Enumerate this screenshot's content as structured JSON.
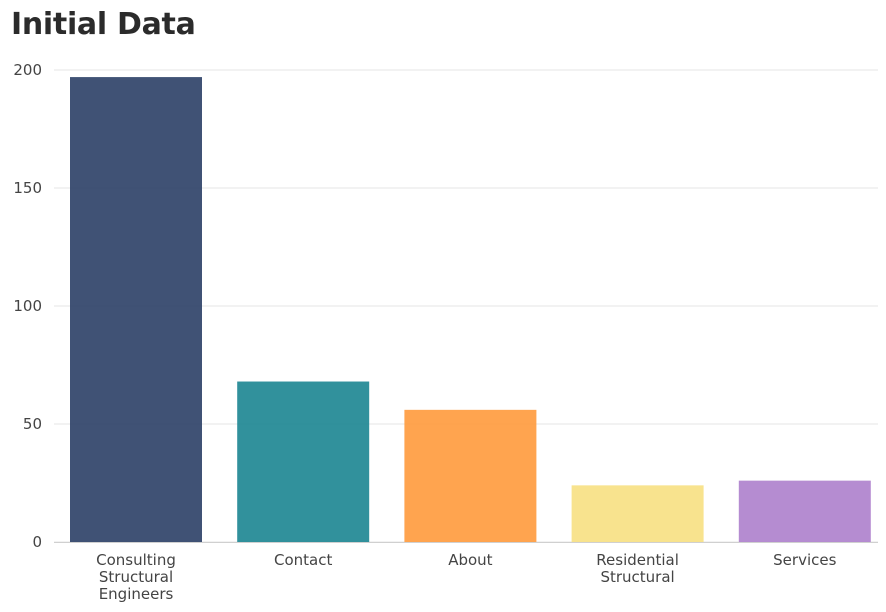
{
  "chart_data": {
    "type": "bar",
    "title": "Initial Data",
    "xlabel": "",
    "ylabel": "",
    "categories": [
      [
        "Consulting",
        "Structural",
        "Engineers"
      ],
      [
        "Contact"
      ],
      [
        "About"
      ],
      [
        "Residential",
        "Structural"
      ],
      [
        "Services"
      ]
    ],
    "values": [
      197,
      68,
      56,
      24,
      26
    ],
    "colors": [
      "#2b3f66",
      "#1b8591",
      "#ff9a3c",
      "#f7e082",
      "#ad7fcc"
    ],
    "ylim": [
      0,
      200
    ],
    "yticks": [
      "0",
      "50",
      "100",
      "150",
      "200"
    ],
    "grid": true,
    "legend": "none"
  }
}
